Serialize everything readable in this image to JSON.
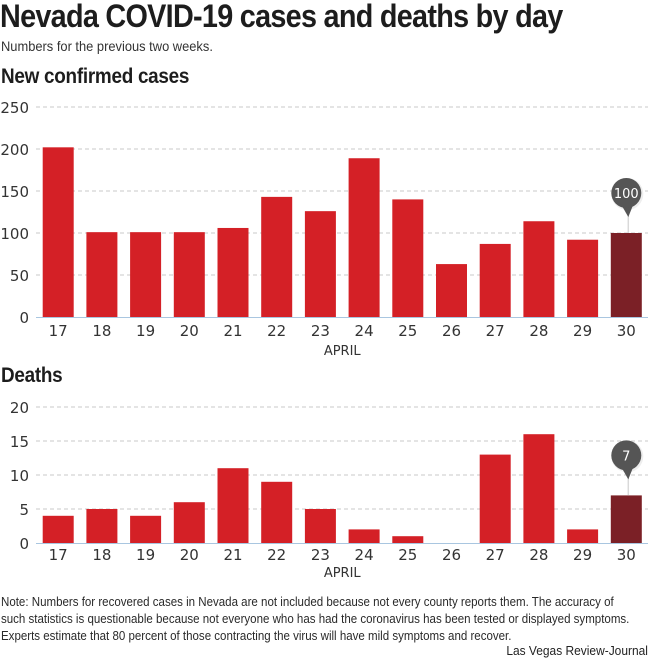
{
  "header": {
    "title": "Nevada COVID-19 cases and deaths by day",
    "subtitle": "Numbers for the previous two weeks."
  },
  "chart_data": [
    {
      "type": "bar",
      "title": "New confirmed cases",
      "xlabel": "APRIL",
      "ylabel": "",
      "categories": [
        "17",
        "18",
        "19",
        "20",
        "21",
        "22",
        "23",
        "24",
        "25",
        "26",
        "27",
        "28",
        "29",
        "30"
      ],
      "values": [
        202,
        101,
        101,
        101,
        106,
        143,
        126,
        189,
        140,
        63,
        87,
        114,
        92,
        100
      ],
      "ylim": [
        0,
        250
      ],
      "yticks": [
        "0",
        "50",
        "100",
        "150",
        "200",
        "250"
      ],
      "ytick_values": [
        0,
        50,
        100,
        150,
        200,
        250
      ],
      "grid": true,
      "highlight": {
        "category": "30",
        "label": "100"
      },
      "colors": {
        "bar": "#d42026",
        "highlight": "#7b2026",
        "callout": "#555555",
        "grid": "#c8c8c8",
        "axis": "#a9c6e0"
      }
    },
    {
      "type": "bar",
      "title": "Deaths",
      "xlabel": "APRIL",
      "ylabel": "",
      "categories": [
        "17",
        "18",
        "19",
        "20",
        "21",
        "22",
        "23",
        "24",
        "25",
        "26",
        "27",
        "28",
        "29",
        "30"
      ],
      "values": [
        4,
        5,
        4,
        6,
        11,
        9,
        5,
        2,
        1,
        0,
        13,
        16,
        2,
        7
      ],
      "ylim": [
        0,
        20
      ],
      "yticks": [
        "0",
        "5",
        "10",
        "15",
        "20"
      ],
      "ytick_values": [
        0,
        5,
        10,
        15,
        20
      ],
      "grid": true,
      "highlight": {
        "category": "30",
        "label": "7"
      },
      "colors": {
        "bar": "#d42026",
        "highlight": "#7b2026",
        "callout": "#555555",
        "grid": "#c8c8c8",
        "axis": "#a9c6e0"
      }
    }
  ],
  "footer": {
    "note": "Note: Numbers for recovered cases in Nevada are not included because not every county reports them. The accuracy of such statistics is questionable because not everyone who has had the coronavirus has been tested or displayed symptoms. Experts estimate that 80 percent of those contracting the virus will have mild symptoms and recover.",
    "source": "Las Vegas Review-Journal"
  }
}
